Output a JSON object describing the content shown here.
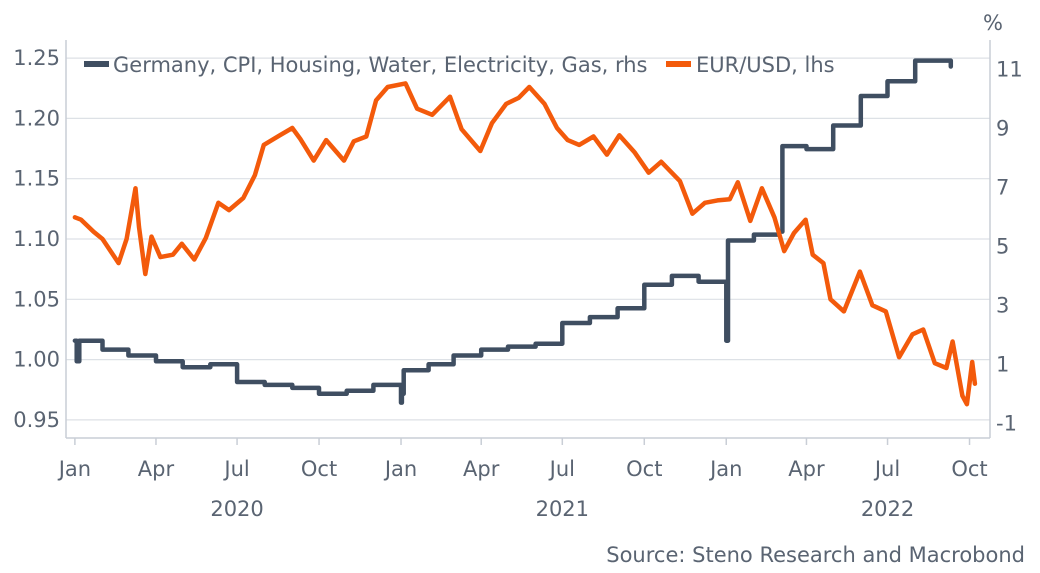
{
  "chart_data": {
    "type": "line",
    "title": "",
    "right_axis_unit": "%",
    "source": "Source: Steno Research and Macrobond",
    "legend": [
      {
        "name": "Germany, CPI, Housing, Water, Electricity, Gas, rhs",
        "color": "#3f4e61"
      },
      {
        "name": "EUR/USD, lhs",
        "color": "#f35a0b"
      }
    ],
    "legend_position": "top-left",
    "left_axis": {
      "ticks": [
        "1.25",
        "1.20",
        "1.15",
        "1.10",
        "1.05",
        "1.00",
        "0.95"
      ],
      "ylim": [
        0.935,
        1.265
      ]
    },
    "right_axis": {
      "ticks": [
        "11",
        "9",
        "7",
        "5",
        "3",
        "1",
        "-1"
      ],
      "ylim": [
        -1.5,
        12.0
      ]
    },
    "x_axis": {
      "start": "2019-12-31",
      "end": "2022-10-15",
      "month_labels": [
        {
          "date": "2020-01-01",
          "label": "Jan"
        },
        {
          "date": "2020-04-01",
          "label": "Apr"
        },
        {
          "date": "2020-07-01",
          "label": "Jul"
        },
        {
          "date": "2020-10-01",
          "label": "Oct"
        },
        {
          "date": "2021-01-01",
          "label": "Jan"
        },
        {
          "date": "2021-04-01",
          "label": "Apr"
        },
        {
          "date": "2021-07-01",
          "label": "Jul"
        },
        {
          "date": "2021-10-01",
          "label": "Oct"
        },
        {
          "date": "2022-01-01",
          "label": "Jan"
        },
        {
          "date": "2022-04-01",
          "label": "Apr"
        },
        {
          "date": "2022-07-01",
          "label": "Jul"
        },
        {
          "date": "2022-10-01",
          "label": "Oct"
        }
      ],
      "year_labels": [
        {
          "date": "2020-07-01",
          "label": "2020"
        },
        {
          "date": "2021-07-01",
          "label": "2021"
        },
        {
          "date": "2022-07-01",
          "label": "2022"
        }
      ]
    },
    "grid": true,
    "series": [
      {
        "name": "Germany, CPI, Housing, Water, Electricity, Gas, rhs",
        "axis": "right",
        "step": true,
        "x": [
          "2020-01-01",
          "2020-01-03",
          "2020-01-06",
          "2020-02-01",
          "2020-03-01",
          "2020-04-01",
          "2020-05-01",
          "2020-06-01",
          "2020-07-01",
          "2020-08-01",
          "2020-09-01",
          "2020-10-01",
          "2020-11-01",
          "2020-12-01",
          "2021-01-01",
          "2021-01-02",
          "2021-01-04",
          "2021-02-01",
          "2021-03-01",
          "2021-04-01",
          "2021-05-01",
          "2021-06-01",
          "2021-07-01",
          "2021-08-01",
          "2021-09-01",
          "2021-10-01",
          "2021-11-01",
          "2021-12-01",
          "2022-01-01",
          "2022-01-03",
          "2022-02-01",
          "2022-03-01",
          "2022-03-05",
          "2022-04-01",
          "2022-05-01",
          "2022-06-01",
          "2022-07-01",
          "2022-08-01",
          "2022-09-01",
          "2022-09-10"
        ],
        "values": [
          1.8,
          1.1,
          1.8,
          1.5,
          1.3,
          1.1,
          0.9,
          1.0,
          0.4,
          0.3,
          0.2,
          0.0,
          0.1,
          0.3,
          -0.3,
          0.0,
          0.8,
          1.0,
          1.3,
          1.5,
          1.6,
          1.7,
          2.4,
          2.6,
          2.9,
          3.7,
          4.0,
          3.8,
          1.8,
          5.2,
          5.4,
          5.5,
          8.4,
          8.3,
          9.1,
          10.1,
          10.6,
          11.3,
          11.3,
          11.1
        ]
      },
      {
        "name": "EUR/USD, lhs",
        "axis": "left",
        "step": false,
        "x": [
          "2020-01-01",
          "2020-01-08",
          "2020-01-22",
          "2020-02-01",
          "2020-02-19",
          "2020-02-28",
          "2020-03-09",
          "2020-03-13",
          "2020-03-20",
          "2020-03-27",
          "2020-04-06",
          "2020-04-20",
          "2020-04-30",
          "2020-05-14",
          "2020-05-27",
          "2020-06-10",
          "2020-06-22",
          "2020-07-08",
          "2020-07-21",
          "2020-07-31",
          "2020-08-18",
          "2020-09-01",
          "2020-09-10",
          "2020-09-25",
          "2020-10-09",
          "2020-10-29",
          "2020-11-09",
          "2020-11-23",
          "2020-12-04",
          "2020-12-17",
          "2021-01-06",
          "2021-01-19",
          "2021-02-05",
          "2021-02-25",
          "2021-03-10",
          "2021-03-31",
          "2021-04-13",
          "2021-04-29",
          "2021-05-13",
          "2021-05-25",
          "2021-06-11",
          "2021-06-25",
          "2021-07-07",
          "2021-07-20",
          "2021-08-05",
          "2021-08-20",
          "2021-09-03",
          "2021-09-20",
          "2021-10-06",
          "2021-10-20",
          "2021-11-10",
          "2021-11-24",
          "2021-12-08",
          "2021-12-22",
          "2022-01-05",
          "2022-01-14",
          "2022-01-28",
          "2022-02-10",
          "2022-02-24",
          "2022-03-07",
          "2022-03-18",
          "2022-03-31",
          "2022-04-08",
          "2022-04-20",
          "2022-04-28",
          "2022-05-13",
          "2022-05-31",
          "2022-06-14",
          "2022-06-29",
          "2022-07-14",
          "2022-07-29",
          "2022-08-10",
          "2022-08-23",
          "2022-09-05",
          "2022-09-12",
          "2022-09-23",
          "2022-09-28",
          "2022-10-04",
          "2022-10-07"
        ],
        "values": [
          1.118,
          1.116,
          1.106,
          1.1,
          1.08,
          1.1,
          1.142,
          1.11,
          1.071,
          1.102,
          1.085,
          1.087,
          1.096,
          1.083,
          1.101,
          1.13,
          1.124,
          1.134,
          1.153,
          1.178,
          1.186,
          1.192,
          1.183,
          1.165,
          1.182,
          1.165,
          1.181,
          1.185,
          1.215,
          1.226,
          1.229,
          1.208,
          1.203,
          1.218,
          1.191,
          1.173,
          1.196,
          1.212,
          1.217,
          1.226,
          1.212,
          1.192,
          1.182,
          1.178,
          1.185,
          1.17,
          1.186,
          1.172,
          1.155,
          1.164,
          1.148,
          1.121,
          1.13,
          1.132,
          1.133,
          1.147,
          1.115,
          1.142,
          1.118,
          1.09,
          1.105,
          1.116,
          1.087,
          1.08,
          1.05,
          1.04,
          1.073,
          1.045,
          1.04,
          1.002,
          1.021,
          1.025,
          0.997,
          0.993,
          1.015,
          0.97,
          0.963,
          0.998,
          0.98
        ]
      }
    ]
  }
}
